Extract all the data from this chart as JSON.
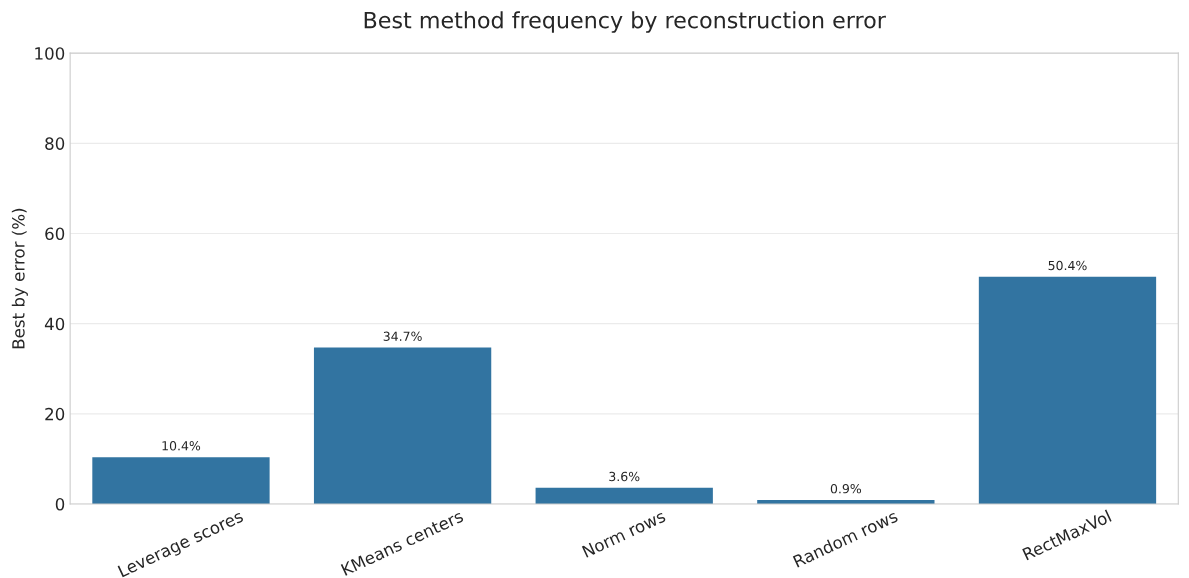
{
  "chart_data": {
    "type": "bar",
    "title": "Best method frequency by reconstruction error",
    "ylabel": "Best by error (%)",
    "categories": [
      "Leverage scores",
      "KMeans centers",
      "Norm rows",
      "Random rows",
      "RectMaxVol"
    ],
    "values": [
      10.4,
      34.7,
      3.6,
      0.9,
      50.4
    ],
    "color": "#3274a1",
    "value_labels": [
      "10.4%",
      "34.7%",
      "3.6%",
      "0.9%",
      "50.4%"
    ],
    "ylim": [
      0,
      100
    ],
    "yticks": [
      0,
      20,
      40,
      60,
      80,
      100
    ],
    "grid": "y",
    "legend": false
  }
}
